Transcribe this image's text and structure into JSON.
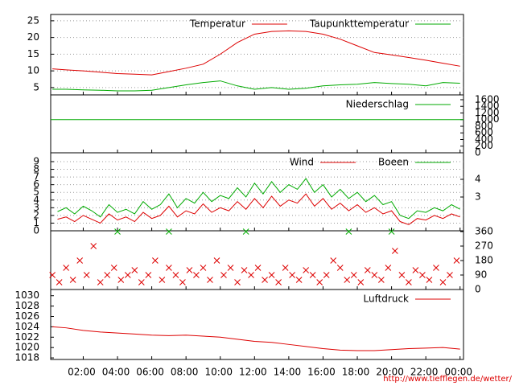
{
  "chart_data": [
    {
      "type": "line",
      "yaxis": "left",
      "xlim": [
        0.1,
        24.2
      ],
      "ylim": [
        2.8,
        26.9
      ],
      "yticks": [
        5,
        10,
        15,
        20,
        25
      ],
      "grid": true,
      "legend": "top-right",
      "x": [
        0.2,
        1,
        2,
        3,
        4,
        5,
        6,
        7,
        8,
        9,
        10,
        11,
        12,
        13,
        14,
        15,
        16,
        17,
        18,
        19,
        20,
        21,
        22,
        23,
        24
      ],
      "series": [
        {
          "name": "Temperatur",
          "color": "#dd0000",
          "values": [
            10.6,
            10.3,
            10.0,
            9.6,
            9.2,
            9.0,
            8.8,
            9.8,
            10.8,
            12.0,
            15.0,
            18.5,
            21.0,
            21.8,
            22.0,
            21.8,
            21.0,
            19.5,
            17.5,
            15.5,
            14.8,
            14.0,
            13.2,
            12.3,
            11.4
          ]
        },
        {
          "name": "Taupunkttemperatur",
          "color": "#00aa00",
          "values": [
            4.5,
            4.5,
            4.3,
            4.2,
            4.0,
            4.0,
            4.2,
            5.0,
            5.8,
            6.5,
            7.0,
            5.5,
            4.5,
            5.0,
            4.5,
            4.8,
            5.5,
            5.8,
            6.0,
            6.5,
            6.2,
            6.0,
            5.5,
            6.5,
            6.3
          ]
        }
      ]
    },
    {
      "type": "line",
      "yaxis": "right",
      "xlim": [
        0.1,
        24.2
      ],
      "ylim": [
        0,
        1745
      ],
      "yticks": [
        0,
        200,
        400,
        600,
        800,
        1000,
        1200,
        1400,
        1600
      ],
      "grid": false,
      "legend": "top-right",
      "x": [
        0.1,
        24.2
      ],
      "series": [
        {
          "name": "Niederschlag",
          "color": "#00aa00",
          "values": [
            1000,
            1000
          ]
        }
      ]
    },
    {
      "type": "line",
      "yaxis": "left",
      "xlim": [
        0.1,
        24.2
      ],
      "ylim": [
        0,
        10.15
      ],
      "yticks": [
        0,
        1,
        2,
        3,
        4,
        5,
        6,
        7,
        8,
        9
      ],
      "y2lim": [
        1.09,
        5.5
      ],
      "y2ticks": [
        3,
        4
      ],
      "grid": true,
      "legend": "top-right",
      "x": [
        0.5,
        1,
        1.5,
        2,
        2.5,
        3,
        3.5,
        4,
        4.5,
        5,
        5.5,
        6,
        6.5,
        7,
        7.5,
        8,
        8.5,
        9,
        9.5,
        10,
        10.5,
        11,
        11.5,
        12,
        12.5,
        13,
        13.5,
        14,
        14.5,
        15,
        15.5,
        16,
        16.5,
        17,
        17.5,
        18,
        18.5,
        19,
        19.5,
        20,
        20.5,
        21,
        21.5,
        22,
        22.5,
        23,
        23.5,
        24
      ],
      "series": [
        {
          "name": "Wind",
          "color": "#dd0000",
          "values": [
            1.5,
            1.8,
            1.2,
            2.0,
            1.5,
            1.0,
            2.2,
            1.4,
            1.8,
            1.2,
            2.4,
            1.6,
            2.0,
            3.2,
            1.8,
            2.6,
            2.2,
            3.5,
            2.4,
            3.0,
            2.6,
            3.8,
            2.8,
            4.2,
            3.0,
            4.5,
            3.2,
            4.0,
            3.6,
            4.8,
            3.2,
            4.2,
            2.8,
            3.6,
            2.6,
            3.4,
            2.4,
            3.0,
            2.2,
            2.6,
            1.2,
            0.8,
            1.6,
            1.4,
            2.0,
            1.6,
            2.2,
            1.8
          ]
        },
        {
          "name": "Boeen",
          "color": "#00aa00",
          "values": [
            2.5,
            3.0,
            2.2,
            3.2,
            2.6,
            1.8,
            3.4,
            2.4,
            2.8,
            2.2,
            3.8,
            2.8,
            3.4,
            4.8,
            3.0,
            4.2,
            3.6,
            5.0,
            3.8,
            4.6,
            4.2,
            5.6,
            4.4,
            6.2,
            4.8,
            6.4,
            5.0,
            6.0,
            5.4,
            6.8,
            5.0,
            6.0,
            4.4,
            5.4,
            4.2,
            5.0,
            3.8,
            4.6,
            3.4,
            3.8,
            2.0,
            1.6,
            2.6,
            2.4,
            3.0,
            2.6,
            3.4,
            2.8
          ]
        }
      ]
    },
    {
      "type": "scatter",
      "yaxis": "right",
      "xlim": [
        0.1,
        24.2
      ],
      "ylim": [
        0,
        365
      ],
      "yticks": [
        0,
        90,
        180,
        270,
        360
      ],
      "grid": false,
      "series": [
        {
          "color": "#dd0000",
          "x": [
            0.2,
            0.6,
            1.0,
            1.4,
            1.8,
            2.2,
            2.6,
            3.0,
            3.4,
            3.8,
            4.2,
            4.6,
            5.0,
            5.4,
            5.8,
            6.2,
            6.6,
            7.0,
            7.4,
            7.8,
            8.2,
            8.6,
            9.0,
            9.4,
            9.8,
            10.2,
            10.6,
            11.0,
            11.4,
            11.8,
            12.2,
            12.6,
            13.0,
            13.4,
            13.8,
            14.2,
            14.6,
            15.0,
            15.4,
            15.8,
            16.2,
            16.6,
            17.0,
            17.4,
            17.8,
            18.2,
            18.6,
            19.0,
            19.4,
            19.8,
            20.2,
            20.6,
            21.0,
            21.4,
            21.8,
            22.2,
            22.6,
            23.0,
            23.4,
            23.8
          ],
          "values": [
            90,
            45,
            135,
            60,
            180,
            90,
            270,
            45,
            90,
            135,
            60,
            90,
            120,
            45,
            90,
            180,
            60,
            135,
            90,
            45,
            120,
            90,
            135,
            60,
            180,
            90,
            135,
            45,
            120,
            90,
            135,
            60,
            90,
            45,
            135,
            90,
            60,
            120,
            90,
            45,
            90,
            180,
            135,
            60,
            90,
            45,
            120,
            90,
            60,
            135,
            240,
            90,
            45,
            120,
            90,
            60,
            135,
            45,
            90,
            180
          ]
        },
        {
          "color": "#00aa00",
          "x": [
            4.0,
            7.0,
            11.5,
            17.5,
            20.0
          ],
          "values": [
            360,
            360,
            360,
            360,
            360
          ]
        }
      ]
    },
    {
      "type": "line",
      "yaxis": "left",
      "xlim": [
        0.1,
        24.2
      ],
      "ylim": [
        1017.7,
        1031.2
      ],
      "yticks": [
        1018,
        1020,
        1022,
        1024,
        1026,
        1028,
        1030
      ],
      "grid": false,
      "legend": "top-right",
      "x": [
        0.2,
        1,
        2,
        3,
        4,
        5,
        6,
        7,
        8,
        9,
        10,
        11,
        12,
        13,
        14,
        15,
        16,
        17,
        18,
        19,
        20,
        21,
        22,
        23,
        24
      ],
      "xticks": [
        {
          "value": 2,
          "label": "02:00"
        },
        {
          "value": 4,
          "label": "04:00"
        },
        {
          "value": 6,
          "label": "06:00"
        },
        {
          "value": 8,
          "label": "08:00"
        },
        {
          "value": 10,
          "label": "10:00"
        },
        {
          "value": 12,
          "label": "12:00"
        },
        {
          "value": 14,
          "label": "14:00"
        },
        {
          "value": 16,
          "label": "16:00"
        },
        {
          "value": 18,
          "label": "18:00"
        },
        {
          "value": 20,
          "label": "20:00"
        },
        {
          "value": 22,
          "label": "22:00"
        },
        {
          "value": 24,
          "label": "00:00"
        }
      ],
      "series": [
        {
          "name": "Luftdruck",
          "color": "#dd0000",
          "values": [
            1024,
            1023.8,
            1023.3,
            1023,
            1022.8,
            1022.6,
            1022.4,
            1022.3,
            1022.4,
            1022.2,
            1022,
            1021.6,
            1021.2,
            1021,
            1020.6,
            1020.2,
            1019.8,
            1019.5,
            1019.4,
            1019.4,
            1019.6,
            1019.8,
            1019.9,
            1020,
            1019.7
          ]
        }
      ]
    }
  ],
  "footer": "http://www.tiefflegen.de/wetter/"
}
